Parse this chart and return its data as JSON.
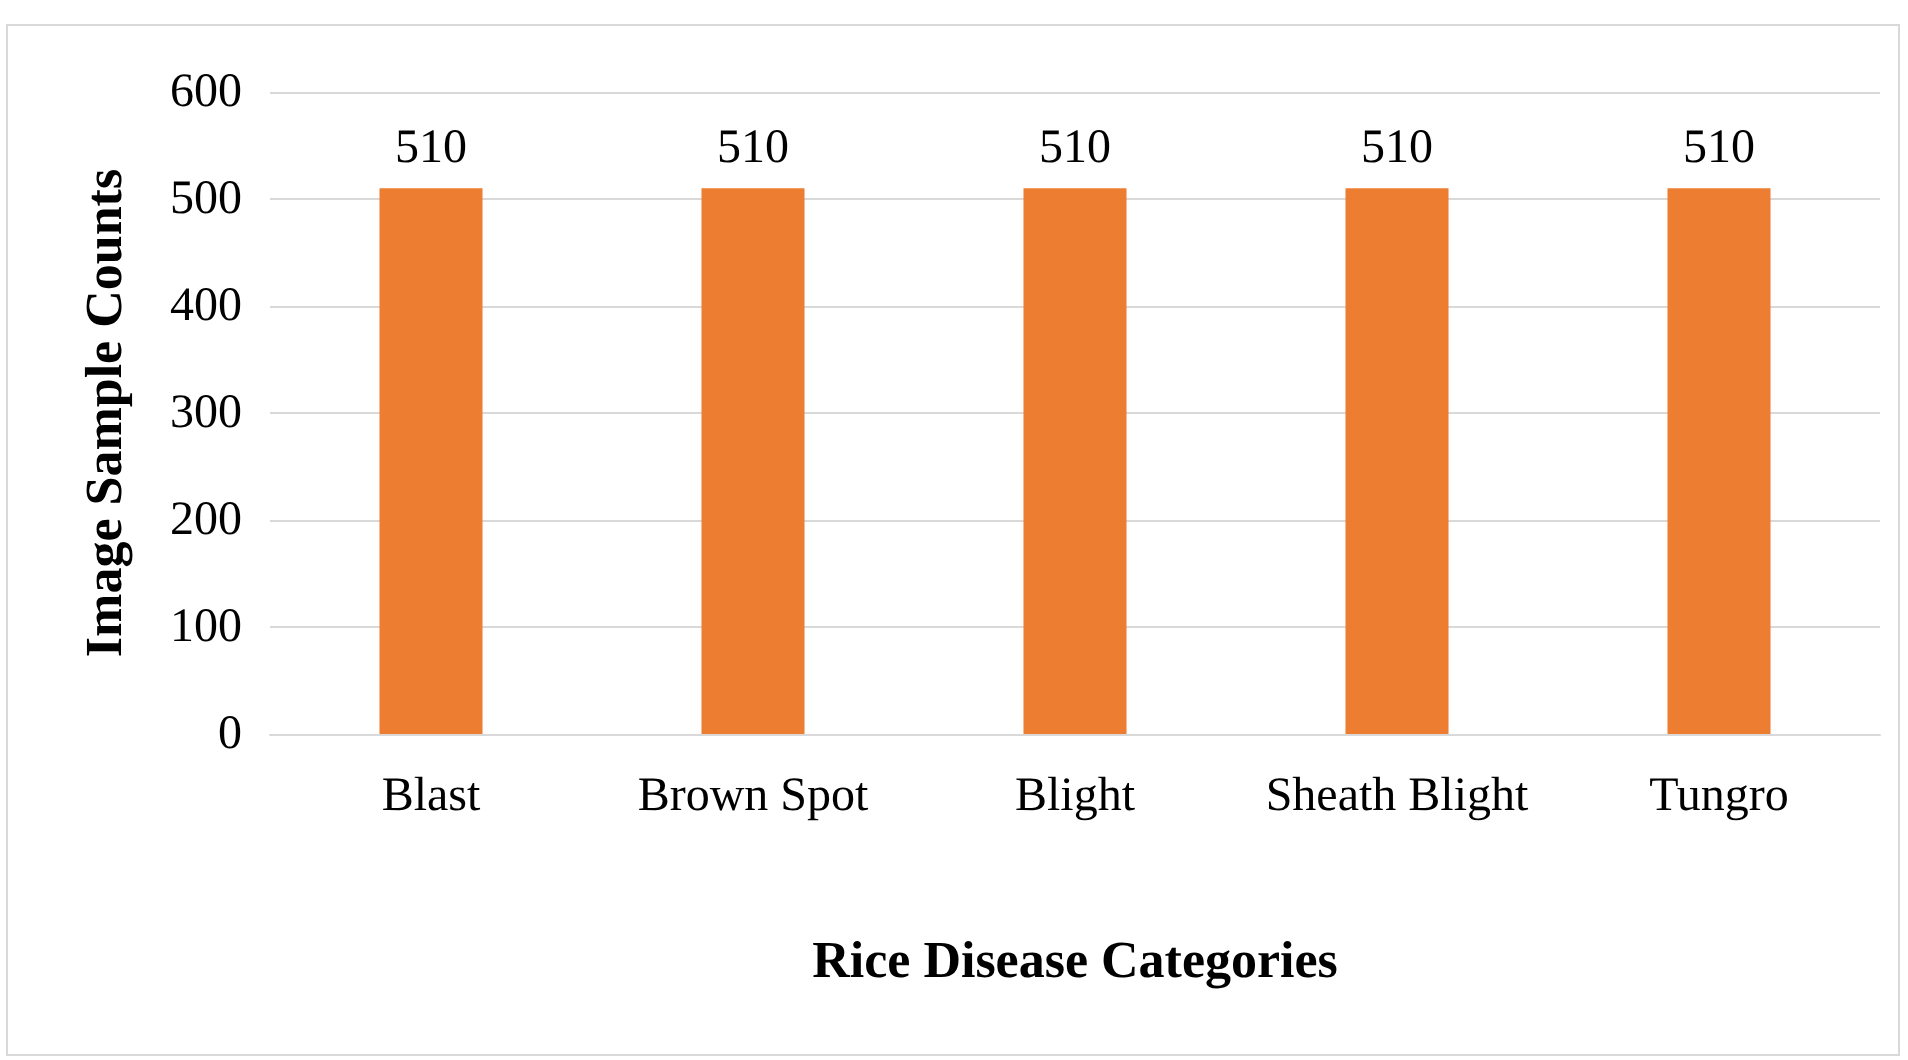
{
  "chart_data": {
    "type": "bar",
    "xlabel": "Rice Disease Categories",
    "ylabel": "Image Sample Counts",
    "categories": [
      "Blast",
      "Brown Spot",
      "Blight",
      "Sheath Blight",
      "Tungro"
    ],
    "values": [
      510,
      510,
      510,
      510,
      510
    ],
    "color": "#ed7d31",
    "ylim": [
      0,
      600
    ],
    "yticks": [
      0,
      100,
      200,
      300,
      400,
      500,
      600
    ],
    "grid": "y",
    "data_labels": true
  }
}
